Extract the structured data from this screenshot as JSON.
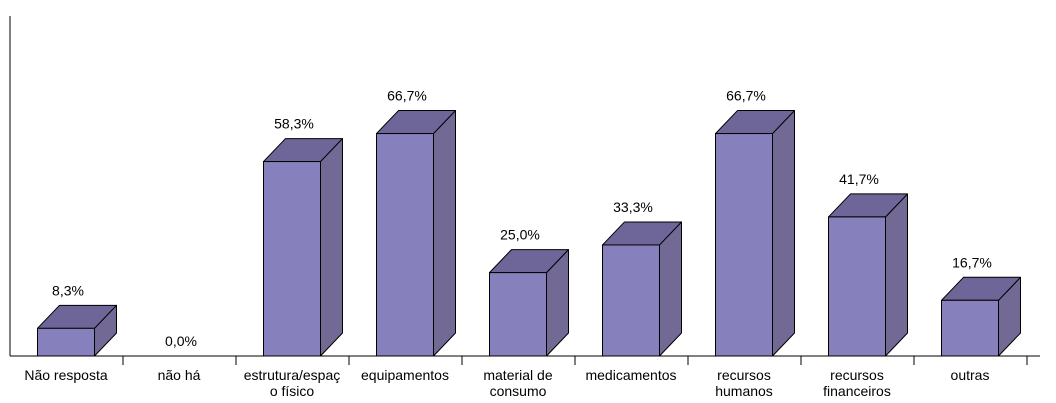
{
  "chart_data": {
    "type": "bar",
    "categories": [
      "Não resposta",
      "não há",
      "estrutura/espaço físico",
      "equipamentos",
      "material de consumo",
      "medicamentos",
      "recursos humanos",
      "recursos financeiros",
      "outras"
    ],
    "category_label_lines": [
      [
        "Não resposta"
      ],
      [
        "não há"
      ],
      [
        "estrutura/espaç",
        "o físico"
      ],
      [
        "equipamentos"
      ],
      [
        "material de",
        "consumo"
      ],
      [
        "medicamentos"
      ],
      [
        "recursos",
        "humanos"
      ],
      [
        "recursos",
        "financeiros"
      ],
      [
        "outras"
      ]
    ],
    "values": [
      8.3,
      0.0,
      58.3,
      66.7,
      25.0,
      33.3,
      66.7,
      41.7,
      16.7
    ],
    "data_labels": [
      "8,3%",
      "0,0%",
      "58,3%",
      "66,7%",
      "25,0%",
      "33,3%",
      "66,7%",
      "41,7%",
      "16,7%"
    ],
    "unit": "%",
    "ylim": [
      0,
      80
    ],
    "grid": false,
    "legend": "none",
    "style": "3d-bar",
    "colors": {
      "bar_front": "#8681BD",
      "bar_top": "#6E6598",
      "bar_side": "#726A95",
      "outline": "#000000",
      "axis": "#000000"
    }
  }
}
